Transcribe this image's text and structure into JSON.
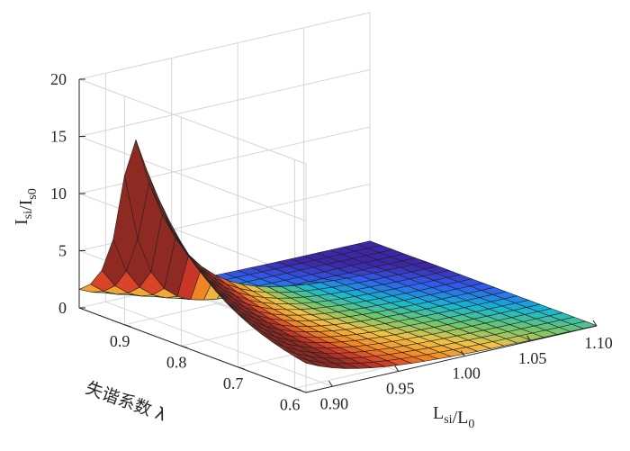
{
  "chart_data": {
    "type": "surface",
    "title": "",
    "xlabel": {
      "main": "L",
      "sub": "si",
      "sep": "/",
      "main2": "L",
      "sub2": "0"
    },
    "ylabel": "失谐系数 λ",
    "zlabel": {
      "main": "I",
      "sub": "si",
      "sep": "/",
      "main2": "I",
      "sub2": "s0"
    },
    "xlim": [
      0.88,
      1.1
    ],
    "ylim": [
      0.58,
      0.98
    ],
    "zlim": [
      0,
      20
    ],
    "x_ticks": [
      "0.90",
      "0.95",
      "1.00",
      "1.05",
      "1.10"
    ],
    "y_ticks": [
      "0.6",
      "0.7",
      "0.8",
      "0.9"
    ],
    "z_ticks": [
      "0",
      "5",
      "10",
      "15",
      "20"
    ],
    "x_range": [
      0.88,
      1.1
    ],
    "y_range": [
      0.58,
      0.98
    ],
    "grid_steps": [
      22,
      20
    ],
    "peak": {
      "x": 0.88,
      "y": 0.89,
      "z": 17
    },
    "colormap": "parula",
    "colormap_stops": [
      "#3e26a8",
      "#2f5ef2",
      "#13b9d4",
      "#6fc76c",
      "#f3c244",
      "#f28b23",
      "#d63a28",
      "#8e2a22"
    ],
    "grid": true
  }
}
